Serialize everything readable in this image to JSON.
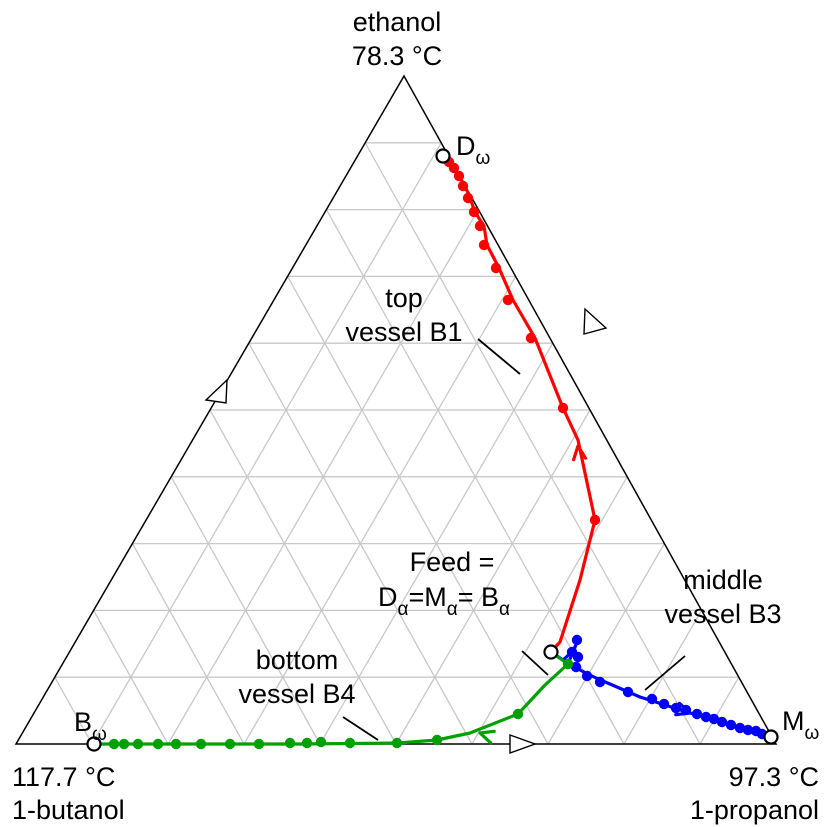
{
  "vertices": {
    "top": {
      "name": "ethanol",
      "temp": "78.3 °C"
    },
    "left": {
      "name": "1-butanol",
      "temp": "117.7 °C"
    },
    "right": {
      "name": "1-propanol",
      "temp": "97.3 °C"
    }
  },
  "points": {
    "d_omega": {
      "letter": "D",
      "sub": "ω"
    },
    "m_omega": {
      "letter": "M",
      "sub": "ω"
    },
    "b_omega": {
      "letter": "B",
      "sub": "ω"
    }
  },
  "labels": {
    "top_vessel": [
      "top",
      "vessel B1"
    ],
    "middle_vessel": [
      "middle",
      "vessel B3"
    ],
    "bottom_vessel": [
      "bottom",
      "vessel B4"
    ],
    "feed": {
      "line1": "Feed =",
      "d": "D",
      "d_sub": "α",
      "eq1": "=M",
      "m_sub": "α",
      "eq2": "= B",
      "b_sub": "α"
    }
  },
  "colors": {
    "top": "#ff0000",
    "middle": "#0000ff",
    "bottom": "#00a000",
    "grid": "#c8c8c8",
    "axis": "#000000"
  }
}
